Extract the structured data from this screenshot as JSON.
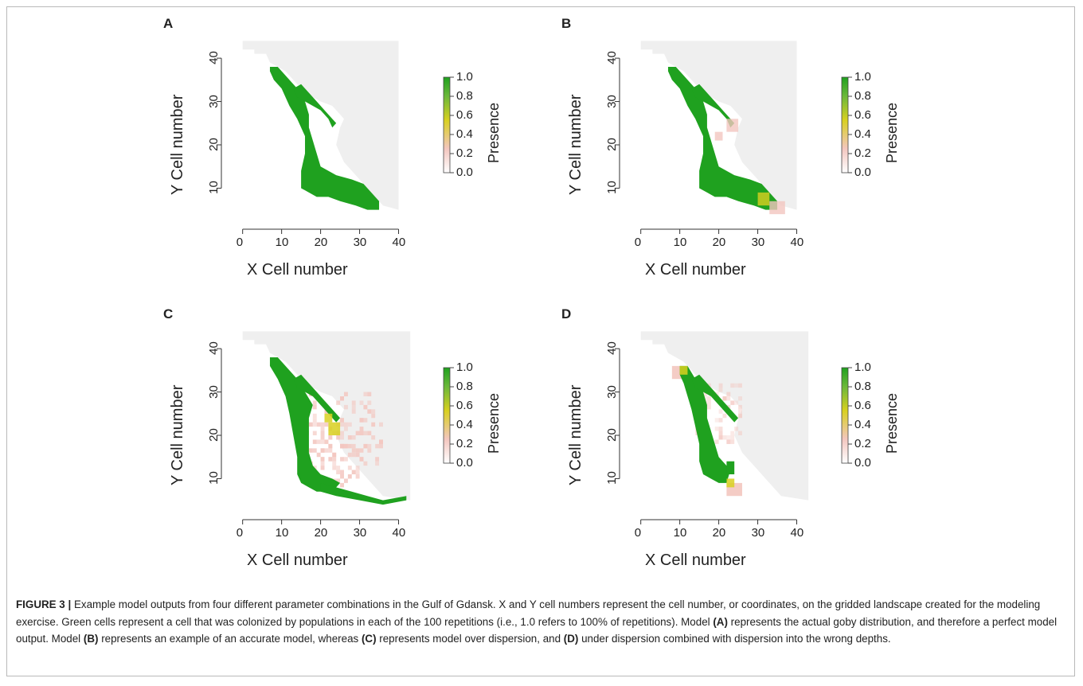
{
  "figure": {
    "panels": [
      {
        "letter": "A",
        "xlabel": "X Cell number",
        "ylabel": "Y Cell number",
        "xticks": [
          "0",
          "10",
          "20",
          "30",
          "40"
        ],
        "yticks": [
          "10",
          "20",
          "30",
          "40"
        ],
        "colorbar": {
          "label": "Presence",
          "ticks": [
            "1.0",
            "0.8",
            "0.6",
            "0.4",
            "0.2",
            "0.0"
          ]
        },
        "variant": "actual"
      },
      {
        "letter": "B",
        "xlabel": "X Cell number",
        "ylabel": "Y Cell number",
        "xticks": [
          "0",
          "10",
          "20",
          "30",
          "40"
        ],
        "yticks": [
          "10",
          "20",
          "30",
          "40"
        ],
        "colorbar": {
          "label": "Presence",
          "ticks": [
            "1.0",
            "0.8",
            "0.6",
            "0.4",
            "0.2",
            "0.0"
          ]
        },
        "variant": "accurate"
      },
      {
        "letter": "C",
        "xlabel": "X Cell number",
        "ylabel": "Y Cell number",
        "xticks": [
          "0",
          "10",
          "20",
          "30",
          "40"
        ],
        "yticks": [
          "10",
          "20",
          "30",
          "40"
        ],
        "colorbar": {
          "label": "Presence",
          "ticks": [
            "1.0",
            "0.8",
            "0.6",
            "0.4",
            "0.2",
            "0.0"
          ]
        },
        "variant": "over"
      },
      {
        "letter": "D",
        "xlabel": "X Cell number",
        "ylabel": "Y Cell number",
        "xticks": [
          "0",
          "10",
          "20",
          "30",
          "40"
        ],
        "yticks": [
          "10",
          "20",
          "30",
          "40"
        ],
        "colorbar": {
          "label": "Presence",
          "ticks": [
            "1.0",
            "0.8",
            "0.6",
            "0.4",
            "0.2",
            "0.0"
          ]
        },
        "variant": "under"
      }
    ],
    "colors": {
      "land": "#efefef",
      "green": "#1fa11f",
      "yellow": "#d8d020",
      "pink": "#f3c6bf",
      "frame": "#b9b9b9"
    }
  },
  "caption": {
    "label": "FIGURE 3 |",
    "t1": " Example model outputs from four different parameter combinations in the Gulf of Gdansk. X and Y cell numbers represent the cell number, or coordinates, on the gridded landscape created for the modeling exercise. Green cells represent a cell that was colonized by populations in each of the 100 repetitions (i.e., 1.0 refers to 100% of repetitions). Model ",
    "a": "(A)",
    "t2": " represents the actual goby distribution, and therefore a perfect model output. Model ",
    "b": "(B)",
    "t3": " represents an example of an accurate model, whereas ",
    "c": "(C)",
    "t4": " represents model over dispersion, and ",
    "d": "(D)",
    "t5": " under dispersion combined with dispersion into the wrong depths."
  }
}
